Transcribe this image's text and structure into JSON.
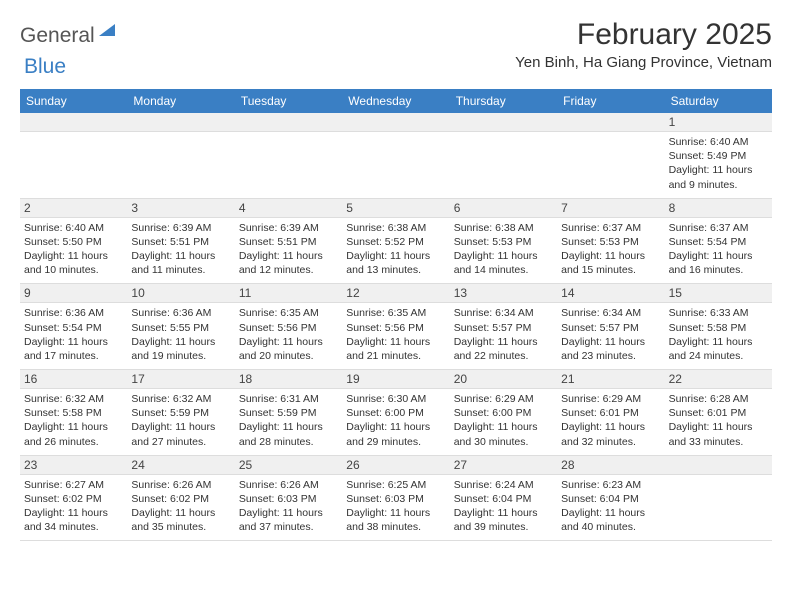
{
  "logo": {
    "part1": "General",
    "part2": "Blue"
  },
  "title": "February 2025",
  "location": "Yen Binh, Ha Giang Province, Vietnam",
  "colors": {
    "header_bg": "#3a7fc4",
    "header_fg": "#ffffff",
    "daynum_bg": "#f0f0f0",
    "text": "#333333",
    "grid_line": "#dddddd"
  },
  "day_labels": [
    "Sunday",
    "Monday",
    "Tuesday",
    "Wednesday",
    "Thursday",
    "Friday",
    "Saturday"
  ],
  "weeks": [
    [
      null,
      null,
      null,
      null,
      null,
      null,
      {
        "n": "1",
        "sr": "Sunrise: 6:40 AM",
        "ss": "Sunset: 5:49 PM",
        "dl": "Daylight: 11 hours and 9 minutes."
      }
    ],
    [
      {
        "n": "2",
        "sr": "Sunrise: 6:40 AM",
        "ss": "Sunset: 5:50 PM",
        "dl": "Daylight: 11 hours and 10 minutes."
      },
      {
        "n": "3",
        "sr": "Sunrise: 6:39 AM",
        "ss": "Sunset: 5:51 PM",
        "dl": "Daylight: 11 hours and 11 minutes."
      },
      {
        "n": "4",
        "sr": "Sunrise: 6:39 AM",
        "ss": "Sunset: 5:51 PM",
        "dl": "Daylight: 11 hours and 12 minutes."
      },
      {
        "n": "5",
        "sr": "Sunrise: 6:38 AM",
        "ss": "Sunset: 5:52 PM",
        "dl": "Daylight: 11 hours and 13 minutes."
      },
      {
        "n": "6",
        "sr": "Sunrise: 6:38 AM",
        "ss": "Sunset: 5:53 PM",
        "dl": "Daylight: 11 hours and 14 minutes."
      },
      {
        "n": "7",
        "sr": "Sunrise: 6:37 AM",
        "ss": "Sunset: 5:53 PM",
        "dl": "Daylight: 11 hours and 15 minutes."
      },
      {
        "n": "8",
        "sr": "Sunrise: 6:37 AM",
        "ss": "Sunset: 5:54 PM",
        "dl": "Daylight: 11 hours and 16 minutes."
      }
    ],
    [
      {
        "n": "9",
        "sr": "Sunrise: 6:36 AM",
        "ss": "Sunset: 5:54 PM",
        "dl": "Daylight: 11 hours and 17 minutes."
      },
      {
        "n": "10",
        "sr": "Sunrise: 6:36 AM",
        "ss": "Sunset: 5:55 PM",
        "dl": "Daylight: 11 hours and 19 minutes."
      },
      {
        "n": "11",
        "sr": "Sunrise: 6:35 AM",
        "ss": "Sunset: 5:56 PM",
        "dl": "Daylight: 11 hours and 20 minutes."
      },
      {
        "n": "12",
        "sr": "Sunrise: 6:35 AM",
        "ss": "Sunset: 5:56 PM",
        "dl": "Daylight: 11 hours and 21 minutes."
      },
      {
        "n": "13",
        "sr": "Sunrise: 6:34 AM",
        "ss": "Sunset: 5:57 PM",
        "dl": "Daylight: 11 hours and 22 minutes."
      },
      {
        "n": "14",
        "sr": "Sunrise: 6:34 AM",
        "ss": "Sunset: 5:57 PM",
        "dl": "Daylight: 11 hours and 23 minutes."
      },
      {
        "n": "15",
        "sr": "Sunrise: 6:33 AM",
        "ss": "Sunset: 5:58 PM",
        "dl": "Daylight: 11 hours and 24 minutes."
      }
    ],
    [
      {
        "n": "16",
        "sr": "Sunrise: 6:32 AM",
        "ss": "Sunset: 5:58 PM",
        "dl": "Daylight: 11 hours and 26 minutes."
      },
      {
        "n": "17",
        "sr": "Sunrise: 6:32 AM",
        "ss": "Sunset: 5:59 PM",
        "dl": "Daylight: 11 hours and 27 minutes."
      },
      {
        "n": "18",
        "sr": "Sunrise: 6:31 AM",
        "ss": "Sunset: 5:59 PM",
        "dl": "Daylight: 11 hours and 28 minutes."
      },
      {
        "n": "19",
        "sr": "Sunrise: 6:30 AM",
        "ss": "Sunset: 6:00 PM",
        "dl": "Daylight: 11 hours and 29 minutes."
      },
      {
        "n": "20",
        "sr": "Sunrise: 6:29 AM",
        "ss": "Sunset: 6:00 PM",
        "dl": "Daylight: 11 hours and 30 minutes."
      },
      {
        "n": "21",
        "sr": "Sunrise: 6:29 AM",
        "ss": "Sunset: 6:01 PM",
        "dl": "Daylight: 11 hours and 32 minutes."
      },
      {
        "n": "22",
        "sr": "Sunrise: 6:28 AM",
        "ss": "Sunset: 6:01 PM",
        "dl": "Daylight: 11 hours and 33 minutes."
      }
    ],
    [
      {
        "n": "23",
        "sr": "Sunrise: 6:27 AM",
        "ss": "Sunset: 6:02 PM",
        "dl": "Daylight: 11 hours and 34 minutes."
      },
      {
        "n": "24",
        "sr": "Sunrise: 6:26 AM",
        "ss": "Sunset: 6:02 PM",
        "dl": "Daylight: 11 hours and 35 minutes."
      },
      {
        "n": "25",
        "sr": "Sunrise: 6:26 AM",
        "ss": "Sunset: 6:03 PM",
        "dl": "Daylight: 11 hours and 37 minutes."
      },
      {
        "n": "26",
        "sr": "Sunrise: 6:25 AM",
        "ss": "Sunset: 6:03 PM",
        "dl": "Daylight: 11 hours and 38 minutes."
      },
      {
        "n": "27",
        "sr": "Sunrise: 6:24 AM",
        "ss": "Sunset: 6:04 PM",
        "dl": "Daylight: 11 hours and 39 minutes."
      },
      {
        "n": "28",
        "sr": "Sunrise: 6:23 AM",
        "ss": "Sunset: 6:04 PM",
        "dl": "Daylight: 11 hours and 40 minutes."
      },
      null
    ]
  ]
}
